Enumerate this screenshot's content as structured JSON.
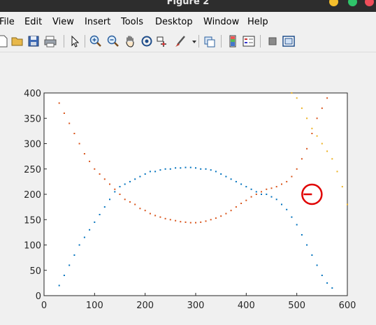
{
  "window": {
    "title": "Figure 2"
  },
  "menu": [
    "File",
    "Edit",
    "View",
    "Insert",
    "Tools",
    "Desktop",
    "Window",
    "Help"
  ],
  "toolbar": {
    "icons": [
      "new-figure-icon",
      "open-file-icon",
      "save-icon",
      "print-icon",
      "select-arrow-icon",
      "zoom-in-icon",
      "zoom-out-icon",
      "pan-hand-icon",
      "rotate-3d-icon",
      "data-cursor-icon",
      "brush-icon",
      "brush-dropdown-icon",
      "link-plot-icon",
      "colorbar-icon",
      "legend-icon",
      "hide-plot-tools-icon",
      "show-plot-tools-icon"
    ]
  },
  "colors": {
    "series_blue": "#0072bd",
    "series_orange": "#d95319",
    "series_yellow": "#edb120",
    "marker_red": "#e00000"
  },
  "chart_data": {
    "type": "scatter",
    "xlim": [
      0,
      600
    ],
    "ylim": [
      0,
      400
    ],
    "xticks": [
      "0",
      "100",
      "200",
      "300",
      "400",
      "500",
      "600"
    ],
    "yticks": [
      "0",
      "50",
      "100",
      "150",
      "200",
      "250",
      "300",
      "350",
      "400"
    ],
    "grid": false,
    "series": [
      {
        "color": "#0072bd",
        "description": "arch: rises from ~0 at x≈30, plateau ~250 near x 200-380, falls to ~0 at x≈560",
        "x": [
          30,
          40,
          50,
          60,
          70,
          80,
          90,
          100,
          110,
          120,
          130,
          140,
          150,
          160,
          170,
          180,
          190,
          200,
          210,
          220,
          230,
          240,
          250,
          260,
          270,
          280,
          290,
          300,
          310,
          320,
          330,
          340,
          350,
          360,
          370,
          380,
          390,
          400,
          410,
          420,
          430,
          440,
          450,
          460,
          470,
          480,
          490,
          500,
          510,
          520,
          530,
          540,
          550,
          560,
          570
        ],
        "y": [
          20,
          40,
          60,
          80,
          100,
          115,
          130,
          145,
          160,
          175,
          190,
          205,
          215,
          220,
          225,
          230,
          235,
          240,
          245,
          245,
          248,
          250,
          250,
          252,
          252,
          253,
          253,
          252,
          250,
          250,
          248,
          245,
          240,
          235,
          230,
          225,
          220,
          215,
          210,
          205,
          200,
          200,
          195,
          190,
          180,
          170,
          155,
          140,
          120,
          100,
          80,
          60,
          40,
          25,
          15
        ]
      },
      {
        "color": "#d95319",
        "description": "U-shape: high ~380 at x≈30, dips to ~140 near x≈290, rises to ~380 at x≈560",
        "x": [
          30,
          40,
          50,
          60,
          70,
          80,
          90,
          100,
          110,
          120,
          130,
          140,
          150,
          160,
          170,
          180,
          190,
          200,
          210,
          220,
          230,
          240,
          250,
          260,
          270,
          280,
          290,
          300,
          310,
          320,
          330,
          340,
          350,
          360,
          370,
          380,
          390,
          400,
          410,
          420,
          430,
          440,
          450,
          460,
          470,
          480,
          490,
          500,
          510,
          520,
          530,
          540,
          550,
          560
        ],
        "y": [
          380,
          360,
          340,
          320,
          300,
          280,
          265,
          250,
          240,
          230,
          220,
          210,
          200,
          190,
          185,
          180,
          172,
          168,
          162,
          158,
          155,
          152,
          150,
          148,
          146,
          145,
          144,
          144,
          145,
          147,
          150,
          153,
          157,
          162,
          168,
          175,
          182,
          188,
          195,
          200,
          205,
          210,
          212,
          215,
          220,
          225,
          235,
          250,
          270,
          290,
          320,
          350,
          370,
          390
        ]
      },
      {
        "color": "#edb120",
        "description": "descending band at right edge",
        "x": [
          490,
          500,
          510,
          520,
          530,
          540,
          550,
          560,
          570,
          580,
          590,
          600
        ],
        "y": [
          400,
          390,
          370,
          350,
          330,
          315,
          300,
          285,
          270,
          245,
          215,
          180
        ]
      }
    ],
    "annotations": [
      {
        "type": "circle-marker",
        "x": 530,
        "y": 200,
        "color": "#e00000"
      }
    ]
  }
}
